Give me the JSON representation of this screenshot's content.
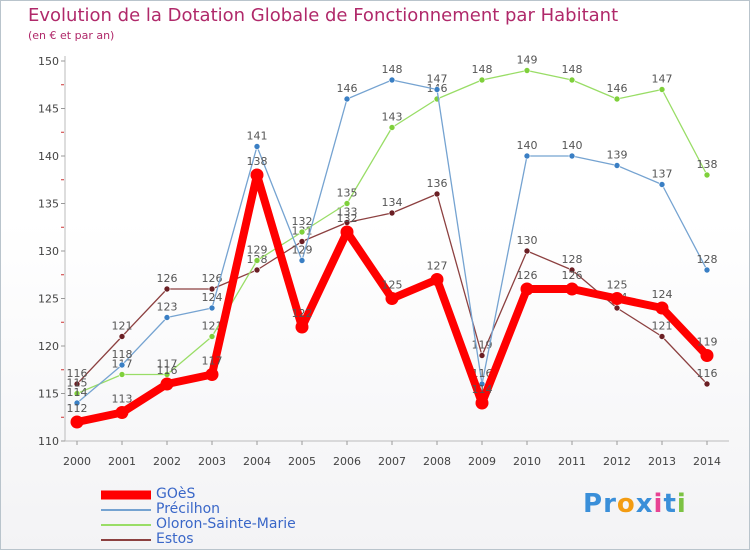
{
  "chart_data": {
    "type": "line",
    "title": "Evolution de la Dotation Globale de Fonctionnement par Habitant",
    "subtitle": "(en € et par an)",
    "xlabel": "",
    "ylabel": "",
    "ylim": [
      110,
      150
    ],
    "ytick_values": [
      110,
      115,
      120,
      125,
      130,
      135,
      140,
      145,
      150
    ],
    "ytick_labels": [
      "110",
      "115",
      "120",
      "125",
      "130",
      "135",
      "140",
      "145",
      "150"
    ],
    "categories": [
      "2000",
      "2001",
      "2002",
      "2003",
      "2004",
      "2005",
      "2006",
      "2007",
      "2008",
      "2009",
      "2010",
      "2011",
      "2012",
      "2013",
      "2014"
    ],
    "grid": false,
    "legend_position": "bottom-left",
    "series": [
      {
        "name": "GOèS",
        "color": "#ff0000",
        "marker": "#ff0000",
        "values": [
          112,
          113,
          116,
          117,
          138,
          122,
          132,
          125,
          127,
          114,
          126,
          126,
          125,
          124,
          119
        ]
      },
      {
        "name": "Précilhon",
        "color": "#75a3d1",
        "marker": "#3a7fc4",
        "values": [
          114,
          118,
          123,
          124,
          141,
          129,
          146,
          148,
          147,
          116,
          140,
          140,
          139,
          137,
          128
        ]
      },
      {
        "name": "Oloron-Sainte-Marie",
        "color": "#99dd66",
        "marker": "#7fd03b",
        "values": [
          115,
          117,
          117,
          121,
          129,
          132,
          135,
          143,
          146,
          148,
          149,
          148,
          146,
          147,
          138
        ]
      },
      {
        "name": "Estos",
        "color": "#8c4040",
        "marker": "#6b1f24",
        "values": [
          116,
          121,
          126,
          126,
          128,
          131,
          133,
          134,
          136,
          119,
          130,
          128,
          124,
          121,
          116
        ]
      }
    ]
  },
  "logo": {
    "letters": [
      "P",
      "r",
      "o",
      "x",
      "i",
      "t",
      "i"
    ],
    "colors": [
      "#3a8fd9",
      "#3a8fd9",
      "#f39c12",
      "#3a8fd9",
      "#e84393",
      "#3a8fd9",
      "#7cc243"
    ]
  }
}
